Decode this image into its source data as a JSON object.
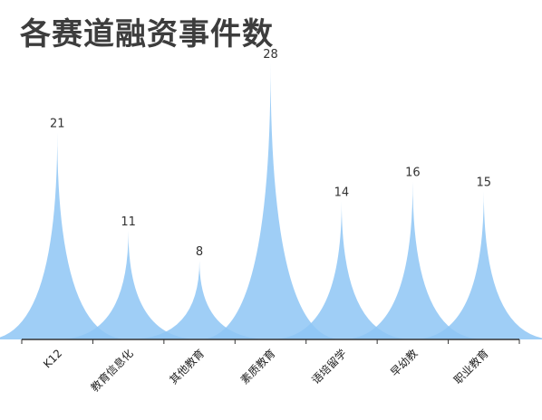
{
  "chart_data": {
    "type": "area",
    "title": "各赛道融资事件数",
    "categories": [
      "K12",
      "教育信息化",
      "其他教育",
      "素质教育",
      "语培留学",
      "早幼教",
      "职业教育"
    ],
    "values": [
      21,
      11,
      8,
      28,
      14,
      16,
      15
    ],
    "ylim": [
      0,
      28
    ],
    "grid": false,
    "legend": "none",
    "colors": {
      "fill": "#8ec5f4",
      "overlap": "#6aaee8",
      "axis": "#333333",
      "title": "#3d3d3d"
    }
  }
}
